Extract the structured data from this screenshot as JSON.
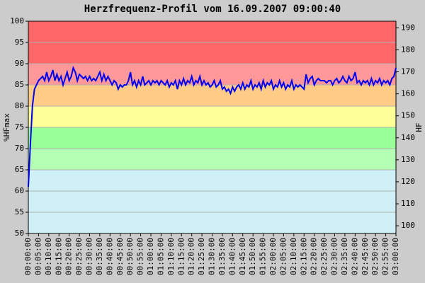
{
  "chart_data": {
    "type": "line",
    "title": "Herzfrequenz-Profil vom 16.09.2007 09:00:40",
    "ylabel": "%HFmax",
    "y2label": "HF",
    "x": [
      0,
      1,
      2,
      3,
      4,
      5,
      6,
      7,
      8,
      9,
      10,
      11,
      12,
      13,
      14,
      15,
      16,
      17,
      18,
      19,
      20,
      21,
      22,
      23,
      24,
      25,
      26,
      27,
      28,
      29,
      30,
      31,
      32,
      33,
      34,
      35,
      36,
      37,
      38,
      39,
      40,
      41,
      42,
      43,
      44,
      45,
      46,
      47,
      48,
      49,
      50,
      51,
      52,
      53,
      54,
      55,
      56,
      57,
      58,
      59,
      60,
      61,
      62,
      63,
      64,
      65,
      66,
      67,
      68,
      69,
      70,
      71,
      72,
      73,
      74,
      75,
      76,
      77,
      78,
      79,
      80,
      81,
      82,
      83,
      84,
      85,
      86,
      87,
      88,
      89,
      90,
      91,
      92,
      93,
      94,
      95,
      96,
      97,
      98,
      99,
      100,
      101,
      102,
      103,
      104,
      105,
      106,
      107,
      108,
      109,
      110,
      111,
      112,
      113,
      114,
      115,
      116,
      117,
      118,
      119,
      120,
      121,
      122,
      123,
      124,
      125,
      126,
      127,
      128,
      129,
      130,
      131,
      132,
      133,
      134,
      135,
      136,
      137,
      138,
      139,
      140,
      141,
      142,
      143,
      144,
      145,
      146,
      147,
      148,
      149,
      150,
      151,
      152,
      153,
      154,
      155,
      156,
      157,
      158,
      159,
      160,
      161,
      162,
      163,
      164,
      165,
      166,
      167,
      168,
      169,
      170,
      171,
      172,
      173,
      174,
      175,
      176,
      177,
      178,
      179,
      180
    ],
    "series": [
      {
        "color": "#0000ee",
        "values": [
          61,
          71,
          80,
          84,
          85,
          86,
          86.5,
          87,
          86,
          88,
          86,
          87,
          88.5,
          86,
          87.5,
          86,
          87,
          85,
          86.5,
          88,
          86,
          87,
          89,
          88,
          86,
          87.5,
          87,
          86.5,
          87,
          86,
          87,
          86,
          86.5,
          86,
          87,
          88,
          86,
          87.5,
          86,
          87,
          86,
          85,
          86,
          85.5,
          84,
          85,
          84.5,
          85,
          85,
          86,
          88,
          85,
          86,
          84.5,
          86,
          85,
          87,
          85,
          85.5,
          86,
          85,
          86,
          85.5,
          86,
          85,
          86,
          85.5,
          85,
          86,
          84.5,
          85.5,
          85,
          86,
          84,
          86,
          85,
          86.5,
          85,
          86,
          85.5,
          87,
          85,
          86,
          85.5,
          87,
          85,
          86,
          85,
          85.5,
          84.5,
          85,
          86,
          84.5,
          85,
          86,
          84,
          84.5,
          83.5,
          84,
          83,
          84.5,
          83.5,
          84.5,
          85,
          84,
          85.5,
          84,
          85,
          84.5,
          86,
          84,
          85,
          84.5,
          85.5,
          84,
          86,
          84.5,
          85.5,
          85,
          86,
          84,
          85,
          84.5,
          86,
          84.5,
          85.5,
          84,
          85,
          84.5,
          86,
          84,
          85,
          84.5,
          85,
          84.5,
          84,
          87.5,
          85.5,
          86.5,
          87,
          85,
          86,
          86.5,
          86,
          86,
          86,
          85.5,
          86,
          86,
          85,
          86,
          86.5,
          85.5,
          86,
          87,
          86,
          85.5,
          87,
          86,
          86.5,
          88,
          85.5,
          86,
          85,
          86,
          85.5,
          86,
          85,
          86.5,
          85,
          86,
          85.5,
          86.5,
          85,
          86,
          85.5,
          86,
          85,
          86.5,
          87,
          89
        ]
      }
    ],
    "zones": [
      {
        "from": 50,
        "to": 65,
        "color": "#d0f0f8"
      },
      {
        "from": 65,
        "to": 70,
        "color": "#b4ffb4"
      },
      {
        "from": 70,
        "to": 75,
        "color": "#99ff99"
      },
      {
        "from": 75,
        "to": 80,
        "color": "#ffff99"
      },
      {
        "from": 80,
        "to": 85,
        "color": "#ffcc88"
      },
      {
        "from": 85,
        "to": 90,
        "color": "#ff9999"
      },
      {
        "from": 90,
        "to": 100,
        "color": "#ff6666"
      }
    ],
    "xlim": [
      0,
      180
    ],
    "xticks": [
      {
        "value": 0,
        "label": "00:00:00"
      },
      {
        "value": 5,
        "label": "00:05:00"
      },
      {
        "value": 10,
        "label": "00:10:00"
      },
      {
        "value": 15,
        "label": "00:15:00"
      },
      {
        "value": 20,
        "label": "00:20:00"
      },
      {
        "value": 25,
        "label": "00:25:00"
      },
      {
        "value": 30,
        "label": "00:30:00"
      },
      {
        "value": 35,
        "label": "00:35:00"
      },
      {
        "value": 40,
        "label": "00:40:00"
      },
      {
        "value": 45,
        "label": "00:45:00"
      },
      {
        "value": 50,
        "label": "00:50:00"
      },
      {
        "value": 55,
        "label": "00:55:00"
      },
      {
        "value": 60,
        "label": "01:00:00"
      },
      {
        "value": 65,
        "label": "01:05:00"
      },
      {
        "value": 70,
        "label": "01:10:00"
      },
      {
        "value": 75,
        "label": "01:15:00"
      },
      {
        "value": 80,
        "label": "01:20:00"
      },
      {
        "value": 85,
        "label": "01:25:00"
      },
      {
        "value": 90,
        "label": "01:30:00"
      },
      {
        "value": 95,
        "label": "01:35:00"
      },
      {
        "value": 100,
        "label": "01:40:00"
      },
      {
        "value": 105,
        "label": "01:45:00"
      },
      {
        "value": 110,
        "label": "01:50:00"
      },
      {
        "value": 115,
        "label": "01:55:00"
      },
      {
        "value": 120,
        "label": "02:00:00"
      },
      {
        "value": 125,
        "label": "02:05:00"
      },
      {
        "value": 130,
        "label": "02:10:00"
      },
      {
        "value": 135,
        "label": "02:15:00"
      },
      {
        "value": 140,
        "label": "02:20:00"
      },
      {
        "value": 145,
        "label": "02:25:00"
      },
      {
        "value": 150,
        "label": "02:30:00"
      },
      {
        "value": 155,
        "label": "02:35:00"
      },
      {
        "value": 160,
        "label": "02:40:00"
      },
      {
        "value": 165,
        "label": "02:45:00"
      },
      {
        "value": 170,
        "label": "02:50:00"
      },
      {
        "value": 175,
        "label": "02:55:00"
      },
      {
        "value": 180,
        "label": "03:00:00"
      }
    ],
    "ylim": [
      50,
      100
    ],
    "yticks": [
      50,
      55,
      60,
      65,
      70,
      75,
      80,
      85,
      90,
      95,
      100
    ],
    "y2lim": [
      96.5,
      193
    ],
    "y2ticks": [
      100,
      110,
      120,
      130,
      140,
      150,
      160,
      170,
      180,
      190
    ],
    "grid": true
  }
}
